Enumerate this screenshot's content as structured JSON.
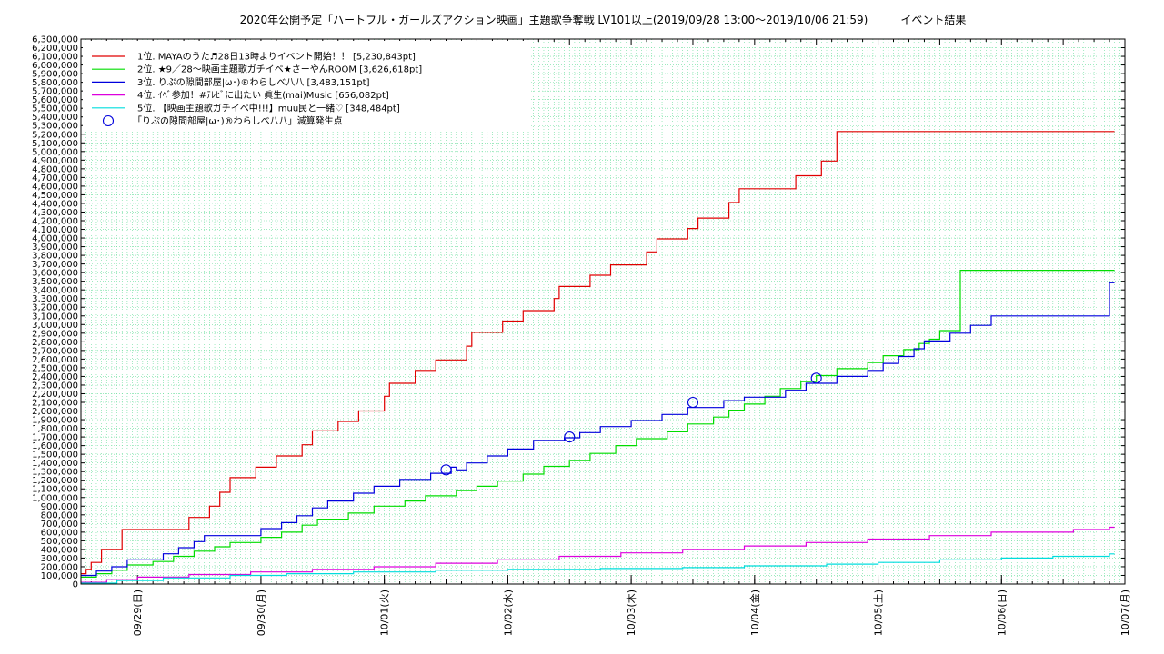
{
  "chart_data": {
    "type": "line",
    "title": "2020年公開予定「ハートフル・ガールズアクション映画」主題歌争奪戦 LV101以上(2019/09/28 13:00〜2019/10/06 21:59)　　　イベント結果",
    "xlabel": "",
    "ylabel": "",
    "ylim": [
      0,
      6300000
    ],
    "xlim": [
      "2019-09-28 13:00",
      "2019-10-07 00:00"
    ],
    "y_ticks": [
      "0",
      "100,000",
      "200,000",
      "300,000",
      "400,000",
      "500,000",
      "600,000",
      "700,000",
      "800,000",
      "900,000",
      "1,000,000",
      "1,100,000",
      "1,200,000",
      "1,300,000",
      "1,400,000",
      "1,500,000",
      "1,600,000",
      "1,700,000",
      "1,800,000",
      "1,900,000",
      "2,000,000",
      "2,100,000",
      "2,200,000",
      "2,300,000",
      "2,400,000",
      "2,500,000",
      "2,600,000",
      "2,700,000",
      "2,800,000",
      "2,900,000",
      "3,000,000",
      "3,100,000",
      "3,200,000",
      "3,300,000",
      "3,400,000",
      "3,500,000",
      "3,600,000",
      "3,700,000",
      "3,800,000",
      "3,900,000",
      "4,000,000",
      "4,100,000",
      "4,200,000",
      "4,300,000",
      "4,400,000",
      "4,500,000",
      "4,600,000",
      "4,700,000",
      "4,800,000",
      "4,900,000",
      "5,000,000",
      "5,100,000",
      "5,200,000",
      "5,300,000",
      "5,400,000",
      "5,500,000",
      "5,600,000",
      "5,700,000",
      "5,800,000",
      "5,900,000",
      "6,000,000",
      "6,100,000",
      "6,200,000",
      "6,300,000"
    ],
    "x_ticks": [
      {
        "label": "09/29(日)",
        "t": "2019-09-29 00:00"
      },
      {
        "label": "09/30(月)",
        "t": "2019-09-30 00:00"
      },
      {
        "label": "10/01(火)",
        "t": "2019-10-01 00:00"
      },
      {
        "label": "10/02(水)",
        "t": "2019-10-02 00:00"
      },
      {
        "label": "10/03(木)",
        "t": "2019-10-03 00:00"
      },
      {
        "label": "10/04(金)",
        "t": "2019-10-04 00:00"
      },
      {
        "label": "10/05(土)",
        "t": "2019-10-05 00:00"
      },
      {
        "label": "10/06(日)",
        "t": "2019-10-06 00:00"
      },
      {
        "label": "10/07(月)",
        "t": "2019-10-07 00:00"
      }
    ],
    "grid": true,
    "legend_position": "top-left",
    "series": [
      {
        "name": "1位. MAYAのうた♬28日13時よりイベント開始！！ [5,230,843pt]",
        "color": "#e00000",
        "points": [
          [
            "2019-09-28 13:00",
            120000
          ],
          [
            "2019-09-28 14:00",
            170000
          ],
          [
            "2019-09-28 15:00",
            250000
          ],
          [
            "2019-09-28 17:00",
            400000
          ],
          [
            "2019-09-28 21:00",
            630000
          ],
          [
            "2019-09-29 10:00",
            770000
          ],
          [
            "2019-09-29 14:00",
            900000
          ],
          [
            "2019-09-29 16:00",
            1060000
          ],
          [
            "2019-09-29 18:00",
            1230000
          ],
          [
            "2019-09-29 23:00",
            1350000
          ],
          [
            "2019-09-30 03:00",
            1480000
          ],
          [
            "2019-09-30 08:00",
            1610000
          ],
          [
            "2019-09-30 10:00",
            1770000
          ],
          [
            "2019-09-30 15:00",
            1880000
          ],
          [
            "2019-09-30 19:00",
            2000000
          ],
          [
            "2019-10-01 00:00",
            2170000
          ],
          [
            "2019-10-01 01:00",
            2320000
          ],
          [
            "2019-10-01 06:00",
            2470000
          ],
          [
            "2019-10-01 10:00",
            2590000
          ],
          [
            "2019-10-01 16:00",
            2750000
          ],
          [
            "2019-10-01 17:00",
            2910000
          ],
          [
            "2019-10-01 23:00",
            3040000
          ],
          [
            "2019-10-02 03:00",
            3160000
          ],
          [
            "2019-10-02 09:00",
            3300000
          ],
          [
            "2019-10-02 10:00",
            3440000
          ],
          [
            "2019-10-02 16:00",
            3570000
          ],
          [
            "2019-10-02 20:00",
            3690000
          ],
          [
            "2019-10-03 03:00",
            3840000
          ],
          [
            "2019-10-03 05:00",
            3990000
          ],
          [
            "2019-10-03 11:00",
            4110000
          ],
          [
            "2019-10-03 13:00",
            4230000
          ],
          [
            "2019-10-03 19:00",
            4410000
          ],
          [
            "2019-10-03 21:00",
            4570000
          ],
          [
            "2019-10-04 08:00",
            4720000
          ],
          [
            "2019-10-04 13:00",
            4890000
          ],
          [
            "2019-10-04 16:00",
            5230843
          ],
          [
            "2019-10-06 21:59",
            5230843
          ]
        ]
      },
      {
        "name": "2位. ★9／28〜映画主題歌ガチイベ★さーやんROOM [3,626,618pt]",
        "color": "#00dd00",
        "points": [
          [
            "2019-09-28 13:00",
            80000
          ],
          [
            "2019-09-28 16:00",
            120000
          ],
          [
            "2019-09-28 19:00",
            160000
          ],
          [
            "2019-09-28 22:00",
            220000
          ],
          [
            "2019-09-29 03:00",
            260000
          ],
          [
            "2019-09-29 07:00",
            320000
          ],
          [
            "2019-09-29 11:00",
            380000
          ],
          [
            "2019-09-29 15:00",
            430000
          ],
          [
            "2019-09-29 18:00",
            480000
          ],
          [
            "2019-09-30 00:00",
            540000
          ],
          [
            "2019-09-30 04:00",
            600000
          ],
          [
            "2019-09-30 08:00",
            680000
          ],
          [
            "2019-09-30 11:00",
            750000
          ],
          [
            "2019-09-30 17:00",
            820000
          ],
          [
            "2019-09-30 22:00",
            900000
          ],
          [
            "2019-10-01 04:00",
            960000
          ],
          [
            "2019-10-01 08:00",
            1020000
          ],
          [
            "2019-10-01 14:00",
            1080000
          ],
          [
            "2019-10-01 18:00",
            1130000
          ],
          [
            "2019-10-01 22:00",
            1190000
          ],
          [
            "2019-10-02 03:00",
            1270000
          ],
          [
            "2019-10-02 07:00",
            1360000
          ],
          [
            "2019-10-02 12:00",
            1430000
          ],
          [
            "2019-10-02 16:00",
            1510000
          ],
          [
            "2019-10-02 21:00",
            1600000
          ],
          [
            "2019-10-03 01:00",
            1680000
          ],
          [
            "2019-10-03 07:00",
            1760000
          ],
          [
            "2019-10-03 11:00",
            1850000
          ],
          [
            "2019-10-03 16:00",
            1930000
          ],
          [
            "2019-10-03 19:00",
            2010000
          ],
          [
            "2019-10-03 22:00",
            2080000
          ],
          [
            "2019-10-04 02:00",
            2170000
          ],
          [
            "2019-10-04 05:00",
            2260000
          ],
          [
            "2019-10-04 09:00",
            2340000
          ],
          [
            "2019-10-04 12:00",
            2410000
          ],
          [
            "2019-10-04 16:00",
            2490000
          ],
          [
            "2019-10-04 22:00",
            2560000
          ],
          [
            "2019-10-05 01:00",
            2640000
          ],
          [
            "2019-10-05 05:00",
            2710000
          ],
          [
            "2019-10-05 08:00",
            2780000
          ],
          [
            "2019-10-05 10:00",
            2830000
          ],
          [
            "2019-10-05 12:00",
            2930000
          ],
          [
            "2019-10-05 16:00",
            3626618
          ],
          [
            "2019-10-06 21:59",
            3626618
          ]
        ]
      },
      {
        "name": "3位. りぷの隙間部屋|ω･)®わらしべ八八 [3,483,151pt]",
        "color": "#0000dd",
        "points": [
          [
            "2019-09-28 13:00",
            100000
          ],
          [
            "2019-09-28 16:00",
            150000
          ],
          [
            "2019-09-28 19:00",
            200000
          ],
          [
            "2019-09-28 22:00",
            280000
          ],
          [
            "2019-09-29 05:00",
            350000
          ],
          [
            "2019-09-29 08:00",
            420000
          ],
          [
            "2019-09-29 11:00",
            490000
          ],
          [
            "2019-09-29 13:00",
            560000
          ],
          [
            "2019-09-30 00:00",
            640000
          ],
          [
            "2019-09-30 04:00",
            710000
          ],
          [
            "2019-09-30 07:00",
            790000
          ],
          [
            "2019-09-30 10:00",
            880000
          ],
          [
            "2019-09-30 13:00",
            960000
          ],
          [
            "2019-09-30 18:00",
            1050000
          ],
          [
            "2019-09-30 22:00",
            1130000
          ],
          [
            "2019-10-01 03:00",
            1210000
          ],
          [
            "2019-10-01 09:00",
            1280000
          ],
          [
            "2019-10-01 13:00",
            1350000
          ],
          [
            "2019-10-01 14:00",
            1320000
          ],
          [
            "2019-10-01 16:00",
            1400000
          ],
          [
            "2019-10-01 20:00",
            1480000
          ],
          [
            "2019-10-02 00:00",
            1560000
          ],
          [
            "2019-10-02 05:00",
            1660000
          ],
          [
            "2019-10-02 11:00",
            1690000
          ],
          [
            "2019-10-02 14:00",
            1750000
          ],
          [
            "2019-10-02 18:00",
            1820000
          ],
          [
            "2019-10-03 00:00",
            1890000
          ],
          [
            "2019-10-03 06:00",
            1960000
          ],
          [
            "2019-10-03 11:00",
            2040000
          ],
          [
            "2019-10-03 18:00",
            2120000
          ],
          [
            "2019-10-03 22:00",
            2160000
          ],
          [
            "2019-10-04 06:00",
            2240000
          ],
          [
            "2019-10-04 10:00",
            2320000
          ],
          [
            "2019-10-04 16:00",
            2400000
          ],
          [
            "2019-10-04 22:00",
            2470000
          ],
          [
            "2019-10-05 01:00",
            2550000
          ],
          [
            "2019-10-05 04:00",
            2630000
          ],
          [
            "2019-10-05 07:00",
            2720000
          ],
          [
            "2019-10-05 09:00",
            2810000
          ],
          [
            "2019-10-05 14:00",
            2900000
          ],
          [
            "2019-10-05 18:00",
            2990000
          ],
          [
            "2019-10-05 22:00",
            3100000
          ],
          [
            "2019-10-06 21:00",
            3483151
          ],
          [
            "2019-10-06 21:59",
            3483151
          ]
        ]
      },
      {
        "name": "4位. ｲﾍﾞ参加！#ﾃﾚﾋﾞに出たい 眞生(mai)Music [656,082pt]",
        "color": "#dd00dd",
        "points": [
          [
            "2019-09-28 13:00",
            20000
          ],
          [
            "2019-09-28 18:00",
            50000
          ],
          [
            "2019-09-29 00:00",
            80000
          ],
          [
            "2019-09-29 10:00",
            110000
          ],
          [
            "2019-09-29 22:00",
            140000
          ],
          [
            "2019-09-30 10:00",
            170000
          ],
          [
            "2019-09-30 22:00",
            200000
          ],
          [
            "2019-10-01 10:00",
            240000
          ],
          [
            "2019-10-01 22:00",
            280000
          ],
          [
            "2019-10-02 10:00",
            320000
          ],
          [
            "2019-10-02 22:00",
            360000
          ],
          [
            "2019-10-03 10:00",
            400000
          ],
          [
            "2019-10-03 22:00",
            440000
          ],
          [
            "2019-10-04 10:00",
            480000
          ],
          [
            "2019-10-04 22:00",
            520000
          ],
          [
            "2019-10-05 10:00",
            560000
          ],
          [
            "2019-10-05 22:00",
            600000
          ],
          [
            "2019-10-06 14:00",
            630000
          ],
          [
            "2019-10-06 21:00",
            656082
          ],
          [
            "2019-10-06 21:59",
            656082
          ]
        ]
      },
      {
        "name": "5位. 【映画主題歌ガチイベ中!!!】muu民と一緒♡ [348,484pt]",
        "color": "#00dddd",
        "points": [
          [
            "2019-09-28 13:00",
            10000
          ],
          [
            "2019-09-28 20:00",
            40000
          ],
          [
            "2019-09-29 05:00",
            70000
          ],
          [
            "2019-09-29 18:00",
            100000
          ],
          [
            "2019-09-30 05:00",
            120000
          ],
          [
            "2019-09-30 18:00",
            140000
          ],
          [
            "2019-10-01 10:00",
            160000
          ],
          [
            "2019-10-02 00:00",
            170000
          ],
          [
            "2019-10-02 18:00",
            180000
          ],
          [
            "2019-10-03 10:00",
            190000
          ],
          [
            "2019-10-03 22:00",
            210000
          ],
          [
            "2019-10-04 14:00",
            230000
          ],
          [
            "2019-10-05 00:00",
            250000
          ],
          [
            "2019-10-05 12:00",
            280000
          ],
          [
            "2019-10-06 00:00",
            300000
          ],
          [
            "2019-10-06 10:00",
            320000
          ],
          [
            "2019-10-06 21:00",
            348484
          ],
          [
            "2019-10-06 21:59",
            348484
          ]
        ]
      }
    ],
    "markers": {
      "name": "「りぷの隙間部屋|ω･)®わらしべ八八」減算発生点",
      "color": "#0000dd",
      "points": [
        [
          "2019-10-01 12:00",
          1320000
        ],
        [
          "2019-10-02 12:00",
          1700000
        ],
        [
          "2019-10-03 12:00",
          2100000
        ],
        [
          "2019-10-04 12:00",
          2380000
        ]
      ]
    }
  }
}
